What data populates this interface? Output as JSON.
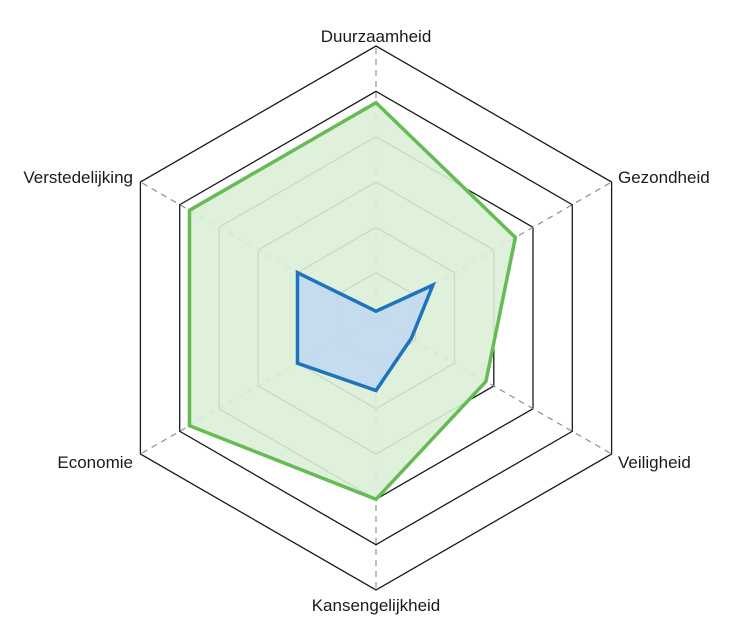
{
  "chart_data": {
    "type": "radar",
    "title": "",
    "axes": [
      "Duurzaamheid",
      "Gezondheid",
      "Veiligheid",
      "Kansengelijkheid",
      "Economie",
      "Verstedelijking"
    ],
    "rings": 6,
    "range": [
      0,
      6
    ],
    "series": [
      {
        "values": [
          4.75,
          3.55,
          2.8,
          4.0,
          4.75,
          4.75
        ],
        "color": "#66bb55",
        "fill": "#dcefd6"
      },
      {
        "values": [
          0.15,
          1.45,
          0.9,
          1.6,
          2.0,
          2.0
        ],
        "color": "#1e73be",
        "fill": "#c2d9ef"
      }
    ]
  }
}
